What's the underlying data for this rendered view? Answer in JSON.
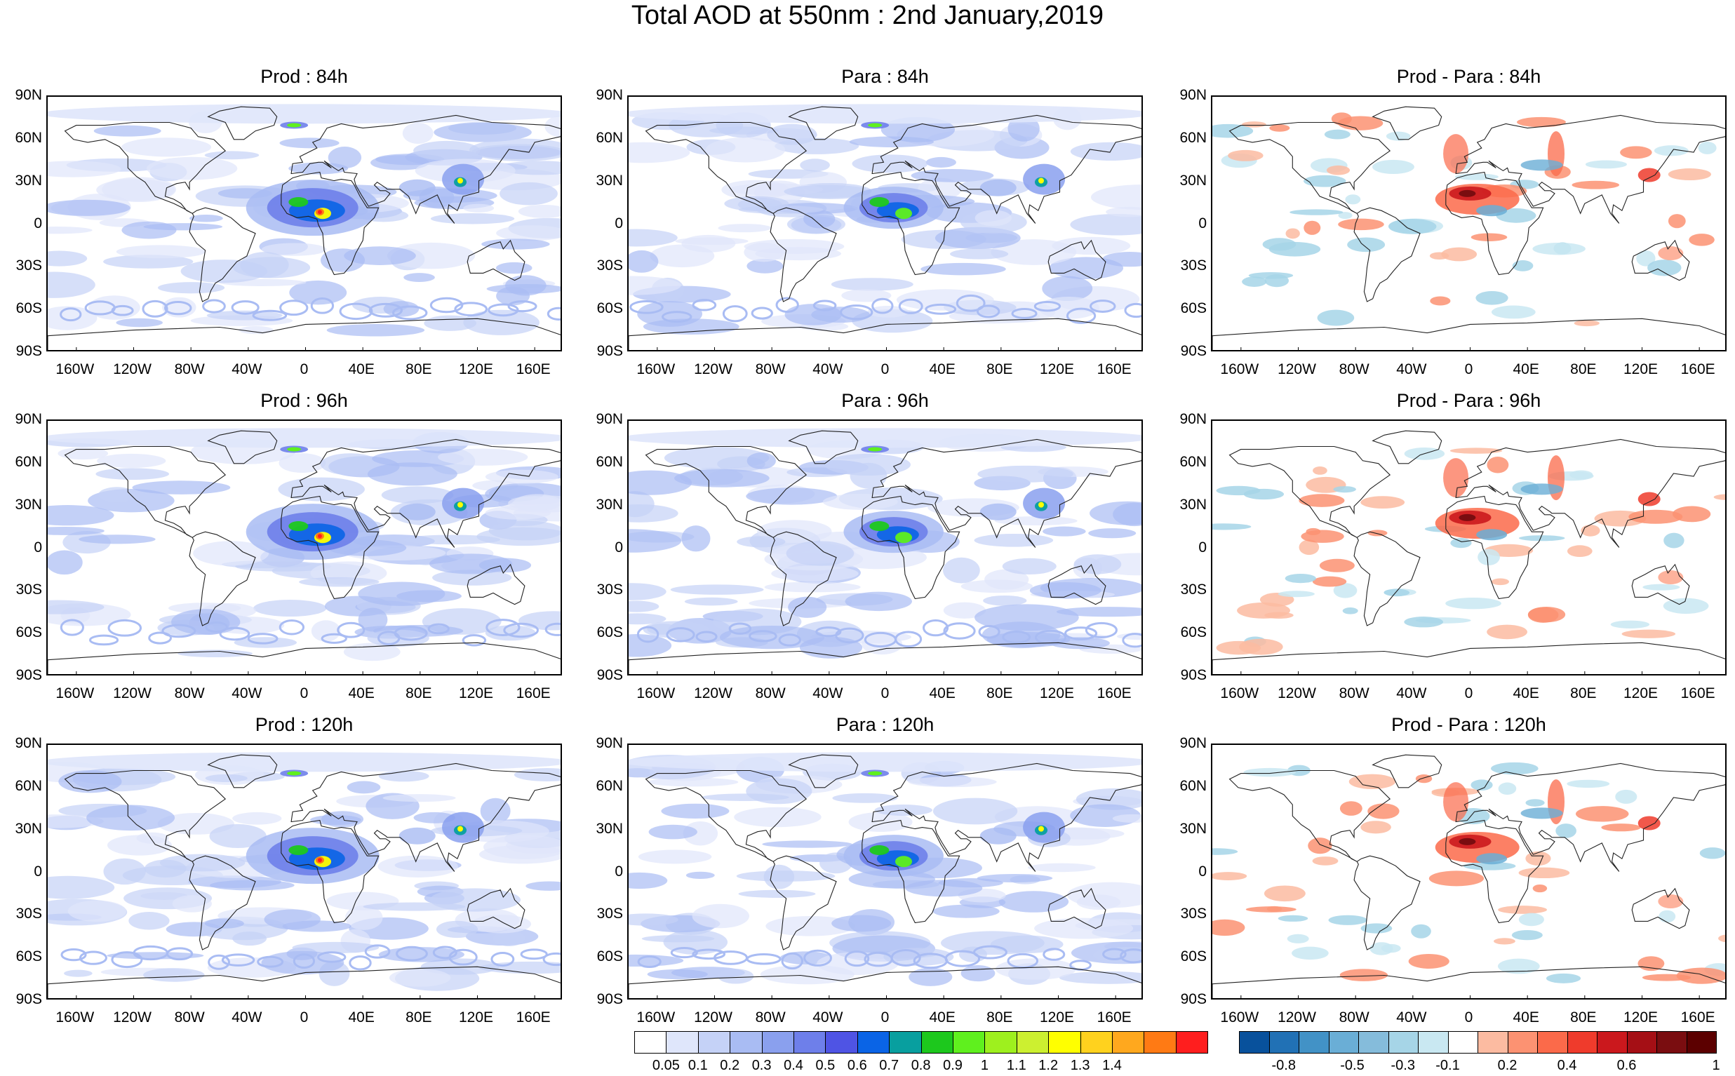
{
  "title": "Total AOD at 550nm : 2nd January,2019",
  "panels": [
    {
      "id": "prod-84",
      "title": "Prod : 84h",
      "kind": "aod",
      "seed": 11
    },
    {
      "id": "para-84",
      "title": "Para : 84h",
      "kind": "aod",
      "seed": 23
    },
    {
      "id": "diff-84",
      "title": "Prod - Para : 84h",
      "kind": "diff",
      "seed": 37
    },
    {
      "id": "prod-96",
      "title": "Prod : 96h",
      "kind": "aod",
      "seed": 41
    },
    {
      "id": "para-96",
      "title": "Para : 96h",
      "kind": "aod",
      "seed": 53
    },
    {
      "id": "diff-96",
      "title": "Prod - Para : 96h",
      "kind": "diff",
      "seed": 67
    },
    {
      "id": "prod-120",
      "title": "Prod : 120h",
      "kind": "aod",
      "seed": 71
    },
    {
      "id": "para-120",
      "title": "Para : 120h",
      "kind": "aod",
      "seed": 83
    },
    {
      "id": "diff-120",
      "title": "Prod - Para : 120h",
      "kind": "diff",
      "seed": 97
    }
  ],
  "lat_labels": [
    "90N",
    "60N",
    "30N",
    "0",
    "30S",
    "60S",
    "90S"
  ],
  "lon_labels": [
    "160W",
    "120W",
    "80W",
    "40W",
    "0",
    "40E",
    "80E",
    "120E",
    "160E"
  ],
  "aod_colorbar": {
    "colors": [
      "#ffffff",
      "#dfe6fb",
      "#c5d2f7",
      "#a9bcf3",
      "#8aa0ee",
      "#6e7fea",
      "#4f54e4",
      "#0a64e6",
      "#089f9f",
      "#1dc81d",
      "#5ff01e",
      "#9ef01e",
      "#ccf030",
      "#ffff00",
      "#ffd21e",
      "#ffa81e",
      "#ff7a14",
      "#ff1e1e"
    ],
    "labels": [
      "0.05",
      "0.1",
      "0.2",
      "0.3",
      "0.4",
      "0.5",
      "0.6",
      "0.7",
      "0.8",
      "0.9",
      "1",
      "1.1",
      "1.2",
      "1.3",
      "1.4"
    ]
  },
  "diff_colorbar": {
    "colors": [
      "#08519c",
      "#2171b5",
      "#4292c6",
      "#6aaed6",
      "#85bcdb",
      "#a6d5e7",
      "#c9e8f2",
      "#ffffff",
      "#fcbba1",
      "#fc9272",
      "#fb6a4a",
      "#ef3b2c",
      "#cb181d",
      "#a50f15",
      "#7a0d10",
      "#5c0000"
    ],
    "labels": [
      "-0.8",
      "-0.5",
      "-0.3",
      "-0.1",
      "0.2",
      "0.4",
      "0.6",
      "1"
    ]
  }
}
